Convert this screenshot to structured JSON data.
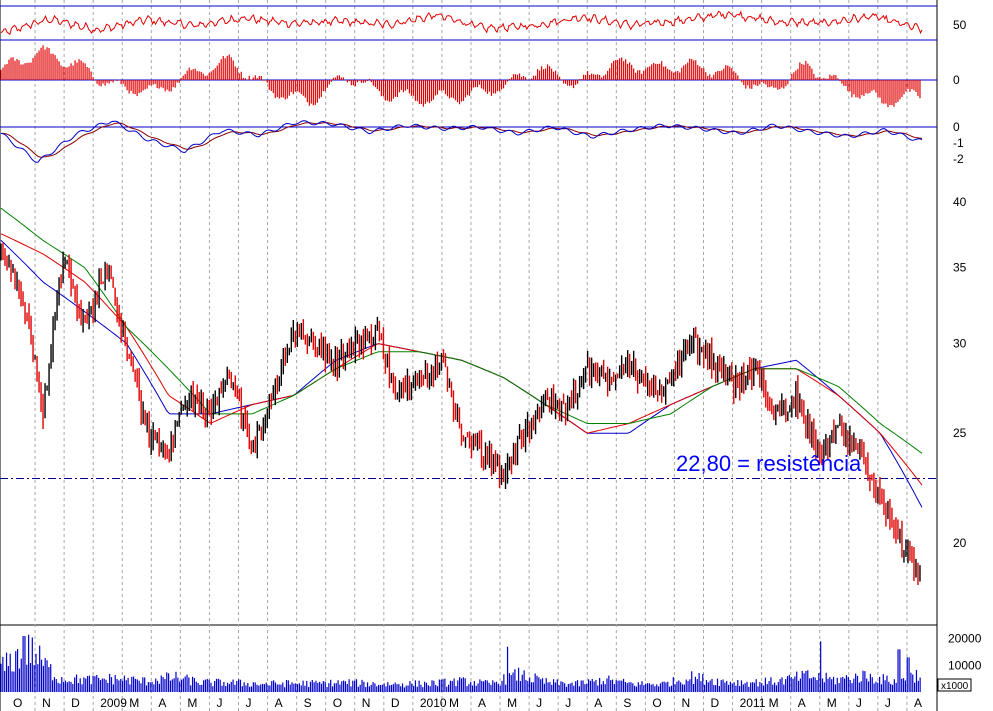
{
  "chart_data": [
    {
      "type": "line",
      "panel": "rsi",
      "y_ticks": [
        "50"
      ],
      "reference_levels": [
        70,
        30
      ],
      "ylim": [
        0,
        100
      ],
      "trend": [
        38,
        64,
        44,
        63,
        52,
        66,
        56,
        60,
        54,
        71,
        47,
        52,
        68,
        53,
        61,
        74,
        59,
        57,
        69,
        45
      ],
      "color": "#e00000"
    },
    {
      "type": "bar",
      "panel": "histogram",
      "y_ticks": [
        "0"
      ],
      "trend": [
        4,
        12,
        6,
        -3,
        -5,
        3,
        8,
        -4,
        -9,
        2,
        -6,
        -8,
        -7,
        -3,
        5,
        -2,
        7,
        5,
        6,
        3,
        -5,
        6,
        -3,
        -9,
        -6
      ],
      "color": "#e00000"
    },
    {
      "type": "line",
      "panel": "oscillator",
      "y_ticks": [
        "0",
        "-1",
        "-2"
      ],
      "ylim": [
        -2.4,
        0.5
      ],
      "trend": [
        -0.4,
        -2.2,
        -0.5,
        0.4,
        -0.8,
        -1.5,
        -0.2,
        -0.5,
        0.3,
        0.2,
        -0.3,
        0.1,
        -0.1,
        0.0,
        -0.4,
        0.0,
        -0.6,
        -0.2,
        0.1,
        -0.1,
        -0.4,
        0.1,
        -0.3,
        -0.6,
        -0.2,
        -0.9
      ],
      "colors": {
        "line": "#0000c8",
        "signal": "#8b0000"
      }
    },
    {
      "type": "line",
      "panel": "price",
      "y_ticks": [
        "40",
        "35",
        "30",
        "25",
        "20"
      ],
      "ylim": [
        17.2,
        43
      ],
      "log_scale": true,
      "x_labels": [
        "O",
        "N",
        "D",
        "2009",
        "M",
        "A",
        "M",
        "J",
        "J",
        "A",
        "S",
        "O",
        "N",
        "D",
        "2010",
        "M",
        "A",
        "M",
        "J",
        "J",
        "A",
        "S",
        "O",
        "N",
        "D",
        "2011",
        "M",
        "A",
        "M",
        "J",
        "J",
        "A"
      ],
      "close_trend": [
        36,
        33,
        26,
        36,
        31,
        35,
        30,
        25,
        24,
        27,
        26,
        28,
        24,
        27,
        31,
        30,
        29,
        30,
        30.5,
        27,
        28,
        29,
        25,
        24,
        23,
        25,
        27,
        26,
        28.5,
        28,
        29,
        27,
        28,
        30,
        29,
        27.5,
        28.5,
        26,
        27,
        24,
        25,
        24,
        22,
        20,
        18.5
      ],
      "moving_averages": [
        {
          "color": "#0000c8",
          "trend": [
            37,
            34,
            32,
            30,
            26,
            26,
            26.5,
            27,
            29,
            30,
            29.5,
            29,
            28,
            26.5,
            25,
            25,
            26.5,
            27.5,
            28.5,
            29,
            27,
            25,
            21.5
          ]
        },
        {
          "color": "#e00000",
          "trend": [
            37.5,
            36,
            34,
            31,
            27,
            25.5,
            26.5,
            27,
            28.5,
            30,
            29.5,
            29,
            28,
            26.5,
            25,
            25.5,
            26.5,
            27.5,
            28.5,
            28.5,
            27,
            25,
            22.5
          ]
        },
        {
          "color": "#008000",
          "trend": [
            39.5,
            37,
            35,
            31,
            28.5,
            26,
            26,
            27,
            28.5,
            29.5,
            29.5,
            29,
            28,
            26.5,
            25.5,
            25.5,
            26,
            27.5,
            28.5,
            28.5,
            27.5,
            25.5,
            24
          ]
        }
      ],
      "support_line": {
        "value": 22.8,
        "style": "dash-dot",
        "color": "#00008b"
      },
      "annotations": [
        {
          "text": "22,80 = resistência",
          "color": "#0000ff"
        }
      ]
    },
    {
      "type": "bar",
      "panel": "volume",
      "y_ticks": [
        "20000",
        "10000"
      ],
      "ylim": [
        0,
        24000
      ],
      "scale_label": "x1000",
      "trend": [
        9000,
        16000,
        5000,
        4500,
        5000,
        4000,
        5500,
        3500,
        3500,
        3000,
        3200,
        3200,
        3500,
        3000,
        3000,
        3200,
        4000,
        3000,
        6500,
        3500,
        3000,
        4500,
        3000,
        3000,
        5500,
        4000,
        3500,
        4000,
        6000,
        4500,
        6000,
        4000,
        7000
      ],
      "spikes": [
        21000,
        17000,
        19000,
        16000,
        13000
      ],
      "color": "#0000c8"
    }
  ]
}
